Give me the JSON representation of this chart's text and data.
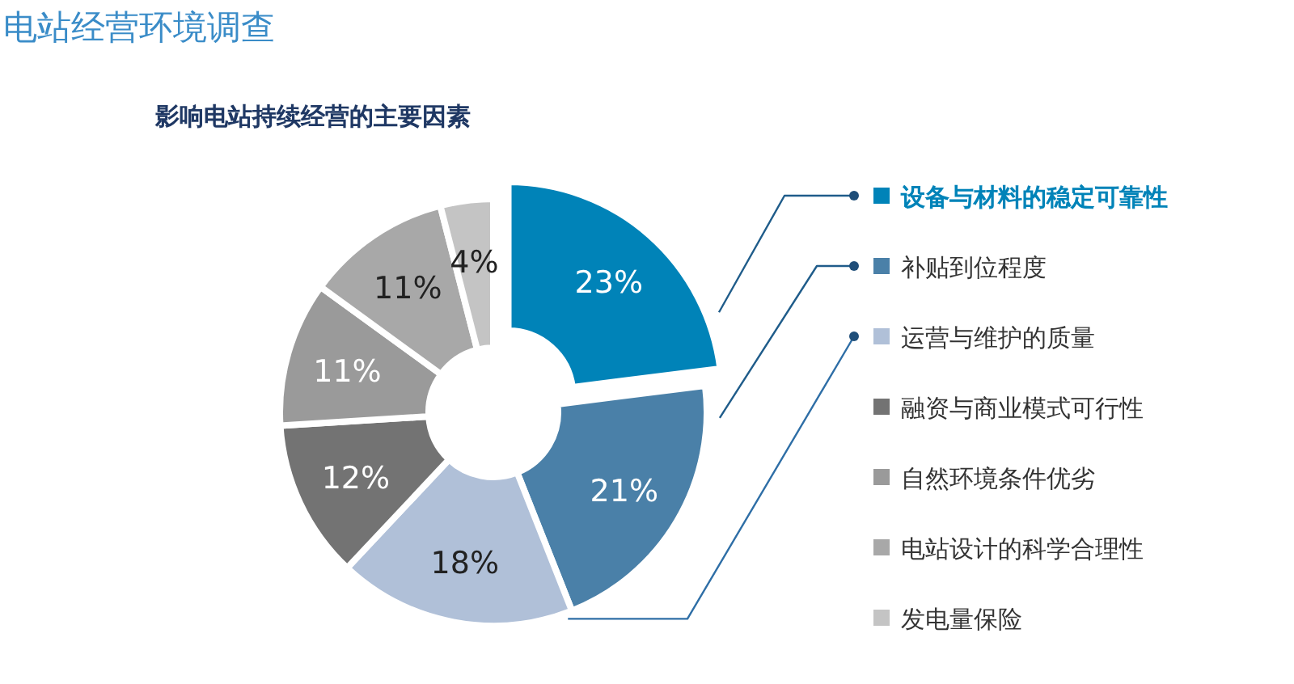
{
  "chart_data": {
    "type": "donut",
    "title": "电站经营环境调查",
    "subtitle": "影响电站持续经营的主要因素",
    "categories": [
      "设备与材料的稳定可靠性",
      "补贴到位程度",
      "运营与维护的质量",
      "融资与商业模式可行性",
      "自然环境条件优劣",
      "电站设计的科学合理性",
      "发电量保险"
    ],
    "values": [
      23,
      21,
      18,
      12,
      11,
      11,
      4
    ],
    "colors": [
      "#0083b8",
      "#4a80a8",
      "#b0c0d8",
      "#737373",
      "#9a9a9a",
      "#a8a8a8",
      "#c4c4c4"
    ],
    "value_labels": [
      "23%",
      "21%",
      "18%",
      "12%",
      "11%",
      "11%",
      "4%"
    ],
    "legend": "right"
  }
}
